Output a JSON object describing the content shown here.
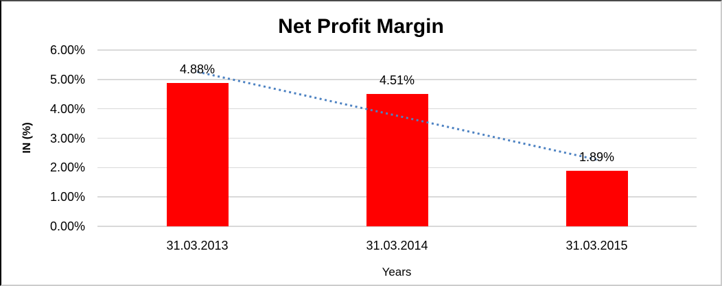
{
  "colors": {
    "bar": "#FF0000",
    "trendline": "#4D82C2",
    "gridline": "#D9D9D9",
    "text": "#000000",
    "background": "#FFFFFF"
  },
  "chart_data": {
    "type": "bar",
    "title": "Net Profit Margin",
    "categories": [
      "31.03.2013",
      "31.03.2014",
      "31.03.2015"
    ],
    "values": [
      4.88,
      4.51,
      1.89
    ],
    "data_labels": [
      "4.88%",
      "4.51%",
      "1.89%"
    ],
    "xlabel": "Years",
    "ylabel": "IN (%)",
    "ylim": [
      0,
      6
    ],
    "ytick_labels": [
      "0.00%",
      "1.00%",
      "2.00%",
      "3.00%",
      "4.00%",
      "5.00%",
      "6.00%"
    ],
    "grid": true,
    "legend": "none",
    "bar_color": "#FF0000",
    "trendline": {
      "type": "linear",
      "style": "dotted",
      "color": "#4D82C2",
      "endpoints_pct": [
        5.26,
        2.27
      ]
    }
  }
}
